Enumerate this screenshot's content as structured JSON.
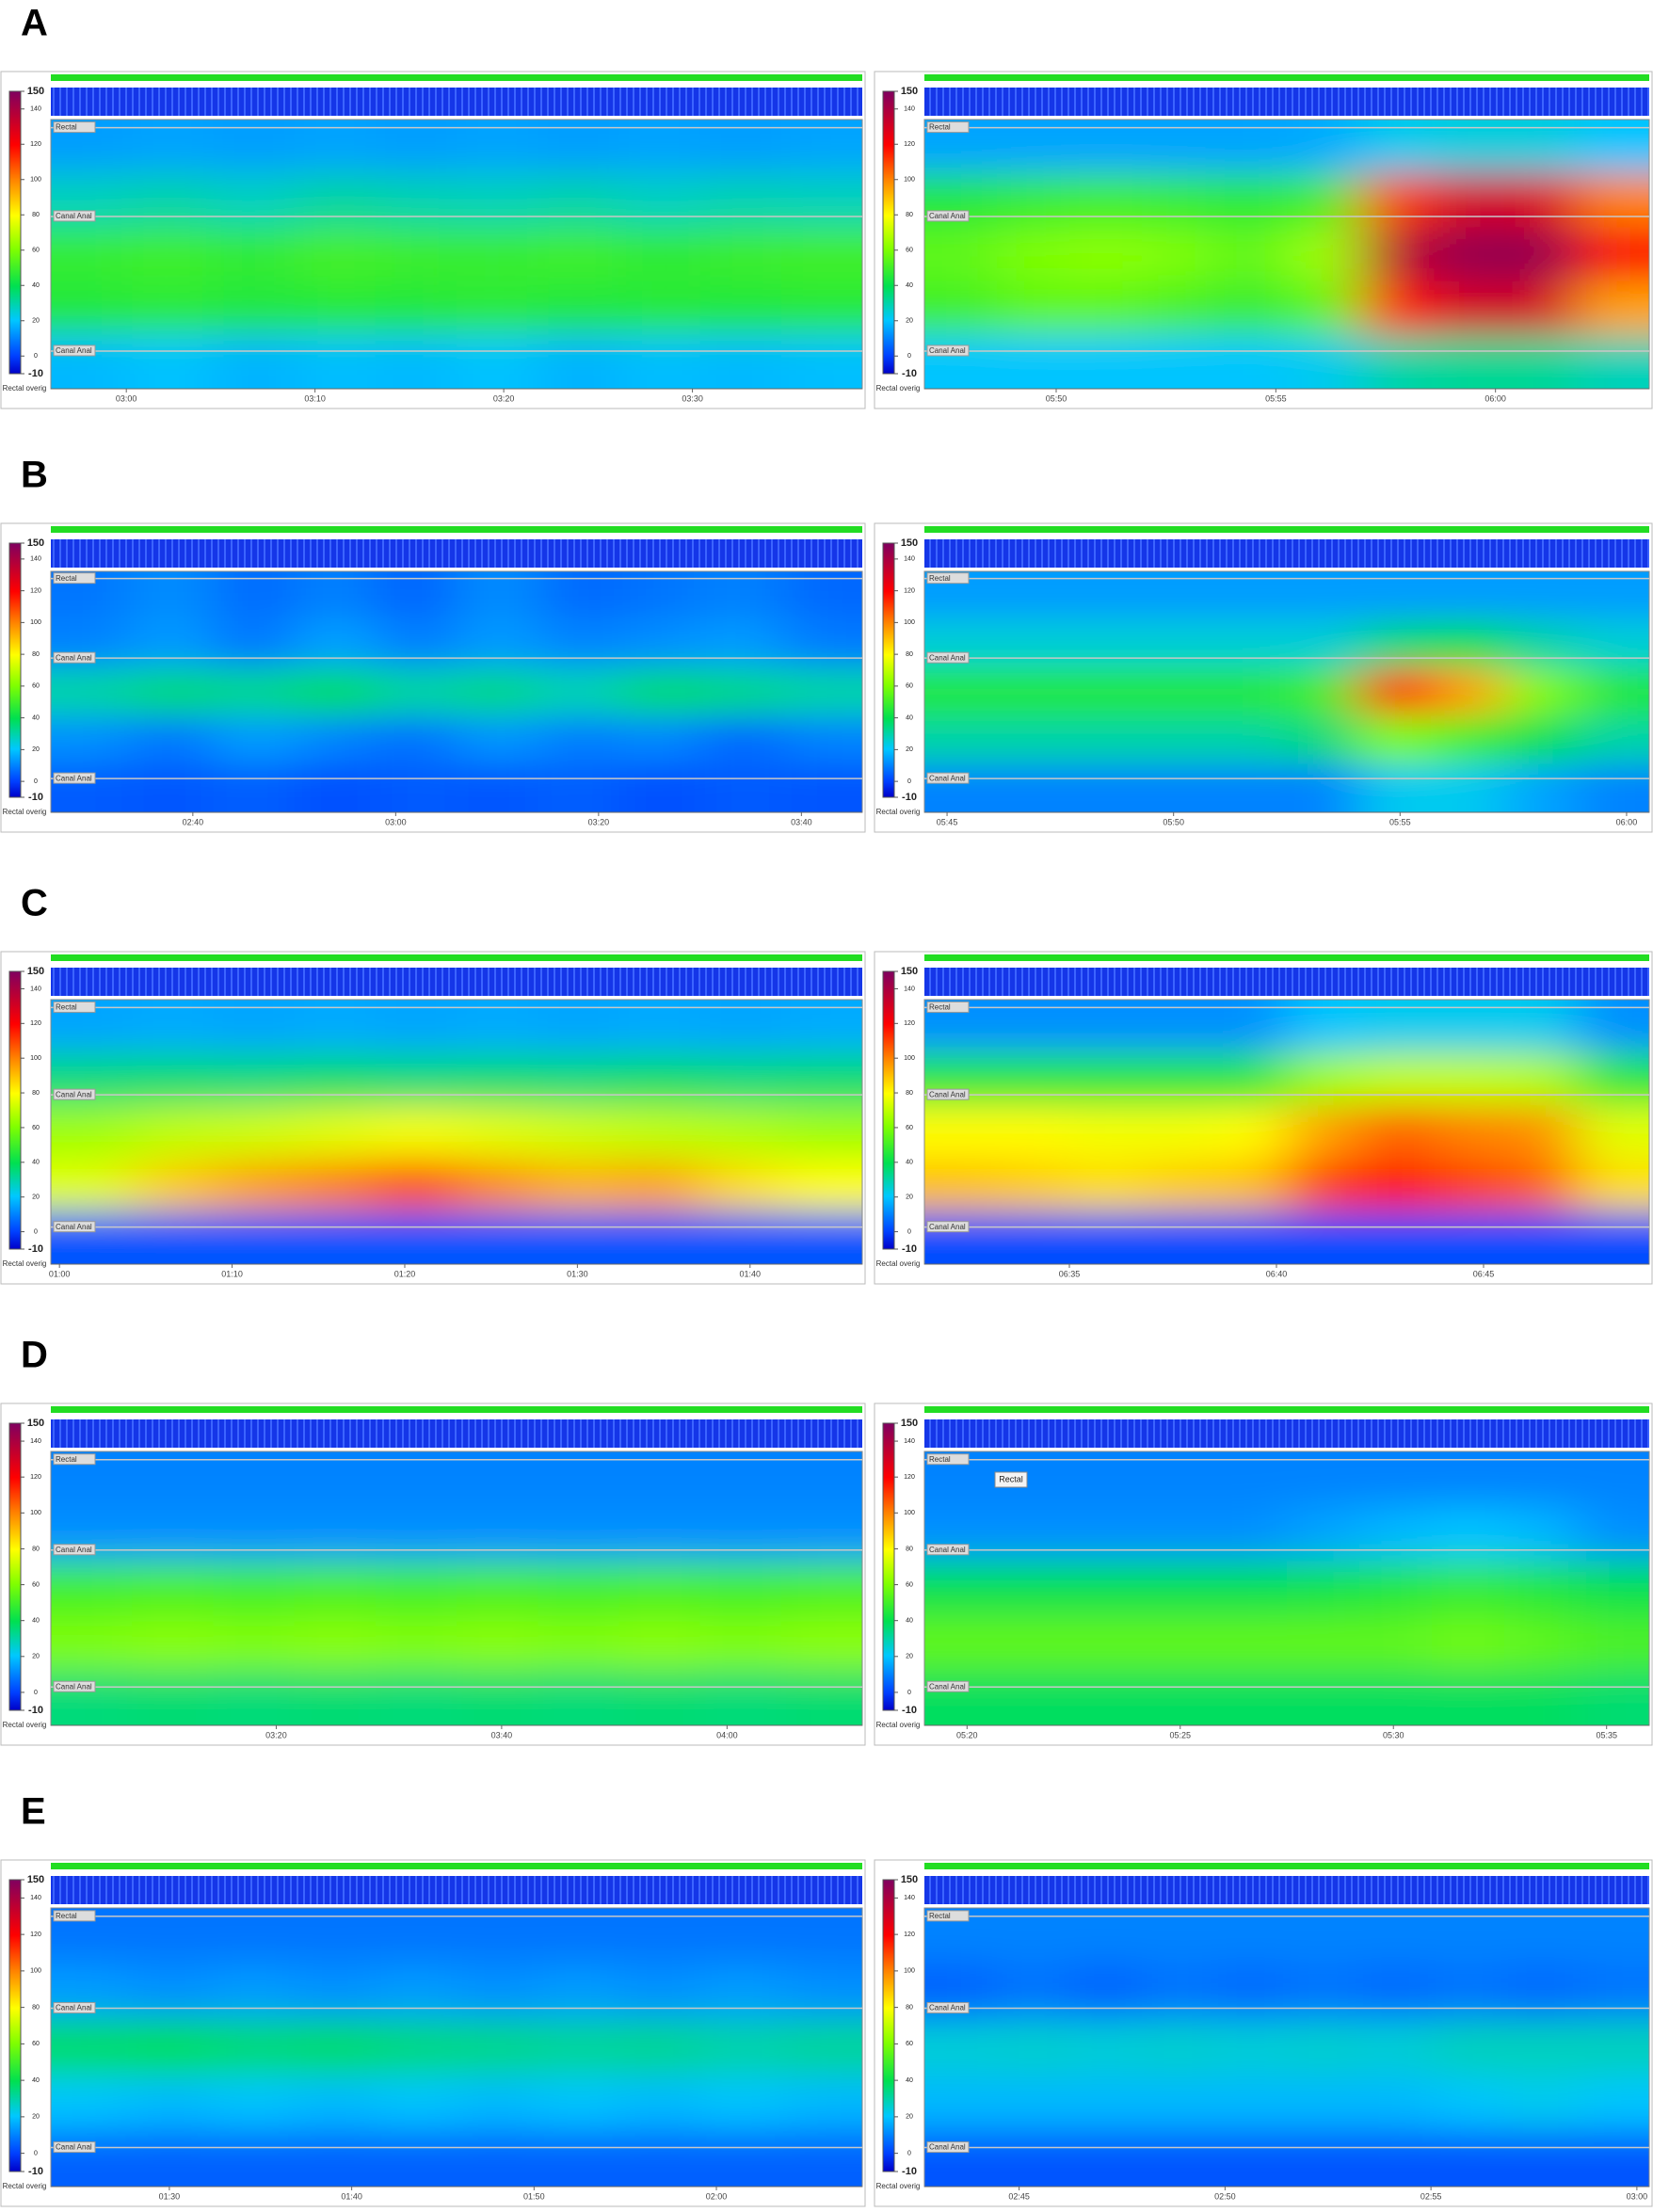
{
  "chart_data": [
    {
      "type": "heatmap",
      "panel_label": "A",
      "colorbar_label": "Rectal overig",
      "sensor_labels": [
        "Rectal",
        "Canal Anal",
        "Canal Anal"
      ],
      "zlim": [
        -10,
        150
      ],
      "zticks": [
        -10,
        0,
        20,
        40,
        60,
        80,
        100,
        120,
        140,
        150
      ],
      "xlim": [
        176,
        219
      ],
      "xticks": [
        {
          "value": 180,
          "label": "03:00"
        },
        {
          "value": 190,
          "label": "03:10"
        },
        {
          "value": 200,
          "label": "03:20"
        },
        {
          "value": 210,
          "label": "03:30"
        }
      ],
      "values": [
        [
          14,
          15,
          14,
          15,
          14,
          15,
          14,
          15,
          14,
          15
        ],
        [
          28,
          30,
          27,
          31,
          29,
          28,
          30,
          27,
          29,
          28
        ],
        [
          48,
          50,
          47,
          51,
          49,
          48,
          50,
          47,
          49,
          50
        ],
        [
          45,
          47,
          44,
          46,
          45,
          47,
          44,
          46,
          45,
          46
        ],
        [
          18,
          20,
          17,
          19,
          18,
          20,
          17,
          19,
          18,
          19
        ]
      ]
    },
    {
      "type": "heatmap",
      "colorbar_label": "Rectal overig",
      "sensor_labels": [
        "Rectal",
        "Canal Anal",
        "Canal Anal"
      ],
      "zlim": [
        -10,
        150
      ],
      "zticks": [
        -10,
        0,
        20,
        40,
        60,
        80,
        100,
        120,
        140,
        150
      ],
      "xlim": [
        347,
        363.5
      ],
      "xticks": [
        {
          "value": 350,
          "label": "05:50"
        },
        {
          "value": 355,
          "label": "05:55"
        },
        {
          "value": 360,
          "label": "06:00"
        }
      ],
      "values": [
        [
          15,
          15,
          15,
          15,
          15,
          16,
          22,
          24,
          24,
          20
        ],
        [
          45,
          48,
          50,
          48,
          46,
          50,
          110,
          130,
          128,
          100
        ],
        [
          55,
          60,
          62,
          60,
          55,
          65,
          135,
          145,
          145,
          120
        ],
        [
          50,
          55,
          55,
          52,
          48,
          55,
          115,
          130,
          130,
          95
        ],
        [
          20,
          20,
          20,
          20,
          20,
          22,
          30,
          32,
          32,
          28
        ]
      ]
    },
    {
      "type": "heatmap",
      "panel_label": "B",
      "colorbar_label": "Rectal overig",
      "sensor_labels": [
        "Rectal",
        "Canal Anal",
        "Canal Anal"
      ],
      "zlim": [
        -10,
        150
      ],
      "zticks": [
        -10,
        0,
        20,
        40,
        60,
        80,
        100,
        120,
        140,
        150
      ],
      "xlim": [
        146,
        226
      ],
      "xticks": [
        {
          "value": 160,
          "label": "02:40"
        },
        {
          "value": 180,
          "label": "03:00"
        },
        {
          "value": 200,
          "label": "03:20"
        },
        {
          "value": 220,
          "label": "03:40"
        }
      ],
      "values": [
        [
          8,
          12,
          6,
          10,
          5,
          12,
          6,
          8,
          10,
          6
        ],
        [
          10,
          14,
          8,
          15,
          9,
          14,
          10,
          12,
          14,
          9
        ],
        [
          30,
          35,
          32,
          38,
          30,
          34,
          28,
          36,
          33,
          30
        ],
        [
          12,
          8,
          14,
          10,
          7,
          13,
          9,
          11,
          6,
          10
        ],
        [
          4,
          3,
          5,
          2,
          4,
          3,
          5,
          2,
          4,
          3
        ]
      ]
    },
    {
      "type": "heatmap",
      "colorbar_label": "Rectal overig",
      "sensor_labels": [
        "Rectal",
        "Canal Anal",
        "Canal Anal"
      ],
      "zlim": [
        -10,
        150
      ],
      "zticks": [
        -10,
        0,
        20,
        40,
        60,
        80,
        100,
        120,
        140,
        150
      ],
      "xlim": [
        344.5,
        360.5
      ],
      "xticks": [
        {
          "value": 345,
          "label": "05:45"
        },
        {
          "value": 350,
          "label": "05:50"
        },
        {
          "value": 355,
          "label": "05:55"
        },
        {
          "value": 360,
          "label": "06:00"
        }
      ],
      "values": [
        [
          14,
          14,
          14,
          14,
          14,
          14,
          14,
          14,
          14,
          14
        ],
        [
          25,
          25,
          25,
          25,
          25,
          25,
          35,
          40,
          30,
          25
        ],
        [
          45,
          45,
          45,
          45,
          45,
          50,
          115,
          95,
          60,
          45
        ],
        [
          30,
          30,
          30,
          30,
          30,
          35,
          60,
          50,
          40,
          30
        ],
        [
          10,
          10,
          10,
          10,
          10,
          10,
          22,
          22,
          15,
          10
        ]
      ]
    },
    {
      "type": "heatmap",
      "panel_label": "C",
      "colorbar_label": "Rectal overig",
      "sensor_labels": [
        "Rectal",
        "Canal Anal",
        "Canal Anal"
      ],
      "zlim": [
        -10,
        150
      ],
      "zticks": [
        -10,
        0,
        20,
        40,
        60,
        80,
        100,
        120,
        140,
        150
      ],
      "xlim": [
        59.5,
        106.5
      ],
      "xticks": [
        {
          "value": 60,
          "label": "01:00"
        },
        {
          "value": 70,
          "label": "01:10"
        },
        {
          "value": 80,
          "label": "01:20"
        },
        {
          "value": 90,
          "label": "01:30"
        },
        {
          "value": 100,
          "label": "01:40"
        }
      ],
      "values": [
        [
          15,
          16,
          15,
          16,
          15,
          16,
          15,
          16,
          15,
          16
        ],
        [
          35,
          36,
          35,
          37,
          35,
          36,
          35,
          37,
          35,
          36
        ],
        [
          65,
          70,
          72,
          75,
          78,
          75,
          72,
          70,
          68,
          65
        ],
        [
          75,
          88,
          95,
          100,
          108,
          98,
          92,
          95,
          85,
          80
        ],
        [
          3,
          3,
          3,
          3,
          3,
          3,
          3,
          3,
          3,
          3
        ]
      ]
    },
    {
      "type": "heatmap",
      "colorbar_label": "Rectal overig",
      "sensor_labels": [
        "Rectal",
        "Canal Anal",
        "Canal Anal"
      ],
      "zlim": [
        -10,
        150
      ],
      "zticks": [
        -10,
        0,
        20,
        40,
        60,
        80,
        100,
        120,
        140,
        150
      ],
      "xlim": [
        391.5,
        409
      ],
      "xticks": [
        {
          "value": 395,
          "label": "06:35"
        },
        {
          "value": 400,
          "label": "06:40"
        },
        {
          "value": 405,
          "label": "06:45"
        }
      ],
      "values": [
        [
          12,
          12,
          12,
          12,
          12,
          20,
          22,
          22,
          22,
          12
        ],
        [
          45,
          45,
          45,
          45,
          45,
          65,
          70,
          70,
          68,
          45
        ],
        [
          80,
          80,
          78,
          78,
          80,
          95,
          105,
          100,
          98,
          75
        ],
        [
          90,
          88,
          85,
          88,
          90,
          110,
          118,
          110,
          105,
          85
        ],
        [
          2,
          2,
          2,
          2,
          2,
          2,
          2,
          2,
          2,
          2
        ]
      ]
    },
    {
      "type": "heatmap",
      "panel_label": "D",
      "colorbar_label": "Rectal overig",
      "sensor_labels": [
        "Rectal",
        "Canal Anal",
        "Canal Anal"
      ],
      "zlim": [
        -10,
        150
      ],
      "zticks": [
        -10,
        0,
        20,
        40,
        60,
        80,
        100,
        120,
        140,
        150
      ],
      "xlim": [
        180,
        252
      ],
      "xticks": [
        {
          "value": 200,
          "label": "03:20"
        },
        {
          "value": 220,
          "label": "03:40"
        },
        {
          "value": 240,
          "label": "04:00"
        }
      ],
      "values": [
        [
          10,
          10,
          10,
          10,
          10,
          10,
          10,
          10,
          10,
          10
        ],
        [
          12,
          12,
          12,
          12,
          12,
          12,
          12,
          12,
          12,
          12
        ],
        [
          50,
          52,
          50,
          52,
          50,
          52,
          50,
          52,
          50,
          52
        ],
        [
          60,
          62,
          60,
          62,
          60,
          62,
          60,
          62,
          60,
          62
        ],
        [
          35,
          36,
          35,
          36,
          35,
          36,
          35,
          36,
          35,
          36
        ]
      ]
    },
    {
      "type": "heatmap",
      "colorbar_label": "Rectal overig",
      "sensor_labels": [
        "Rectal",
        "Canal Anal",
        "Canal Anal"
      ],
      "tooltip": "Rectal",
      "zlim": [
        -10,
        150
      ],
      "zticks": [
        -10,
        0,
        20,
        40,
        60,
        80,
        100,
        120,
        140,
        150
      ],
      "xlim": [
        319,
        336
      ],
      "xticks": [
        {
          "value": 320,
          "label": "05:20"
        },
        {
          "value": 325,
          "label": "05:25"
        },
        {
          "value": 330,
          "label": "05:30"
        },
        {
          "value": 335,
          "label": "05:35"
        }
      ],
      "values": [
        [
          10,
          10,
          10,
          10,
          10,
          10,
          10,
          10,
          10,
          10
        ],
        [
          12,
          12,
          12,
          12,
          12,
          15,
          18,
          20,
          18,
          12
        ],
        [
          40,
          40,
          40,
          40,
          40,
          42,
          45,
          48,
          45,
          40
        ],
        [
          55,
          55,
          55,
          55,
          55,
          55,
          55,
          58,
          55,
          52
        ],
        [
          38,
          38,
          38,
          38,
          38,
          38,
          38,
          38,
          38,
          36
        ]
      ]
    },
    {
      "type": "heatmap",
      "panel_label": "E",
      "colorbar_label": "Rectal overig",
      "sensor_labels": [
        "Rectal",
        "Canal Anal",
        "Canal Anal"
      ],
      "zlim": [
        -10,
        150
      ],
      "zticks": [
        -10,
        0,
        20,
        40,
        60,
        80,
        100,
        120,
        140,
        150
      ],
      "xlim": [
        83.5,
        128
      ],
      "xticks": [
        {
          "value": 90,
          "label": "01:30"
        },
        {
          "value": 100,
          "label": "01:40"
        },
        {
          "value": 110,
          "label": "01:50"
        },
        {
          "value": 120,
          "label": "02:00"
        }
      ],
      "values": [
        [
          8,
          8,
          8,
          8,
          8,
          8,
          8,
          8,
          8,
          8
        ],
        [
          14,
          12,
          14,
          12,
          14,
          12,
          14,
          12,
          14,
          12
        ],
        [
          38,
          40,
          36,
          38,
          35,
          34,
          32,
          33,
          30,
          32
        ],
        [
          20,
          18,
          20,
          18,
          20,
          18,
          20,
          18,
          20,
          18
        ],
        [
          5,
          5,
          5,
          5,
          5,
          5,
          5,
          5,
          5,
          5
        ]
      ]
    },
    {
      "type": "heatmap",
      "colorbar_label": "Rectal overig",
      "sensor_labels": [
        "Rectal",
        "Canal Anal",
        "Canal Anal"
      ],
      "zlim": [
        -10,
        150
      ],
      "zticks": [
        -10,
        0,
        20,
        40,
        60,
        80,
        100,
        120,
        140,
        150
      ],
      "xlim": [
        162.7,
        180.3
      ],
      "xticks": [
        {
          "value": 165,
          "label": "02:45"
        },
        {
          "value": 170,
          "label": "02:50"
        },
        {
          "value": 175,
          "label": "02:55"
        },
        {
          "value": 180,
          "label": "03:00"
        }
      ],
      "values": [
        [
          10,
          10,
          10,
          10,
          10,
          10,
          10,
          10,
          10,
          10
        ],
        [
          5,
          8,
          5,
          8,
          6,
          8,
          6,
          8,
          6,
          8
        ],
        [
          25,
          26,
          25,
          26,
          25,
          26,
          25,
          28,
          28,
          28
        ],
        [
          18,
          18,
          18,
          18,
          18,
          18,
          18,
          20,
          22,
          20
        ],
        [
          3,
          3,
          3,
          3,
          3,
          3,
          3,
          3,
          3,
          3
        ]
      ]
    }
  ]
}
